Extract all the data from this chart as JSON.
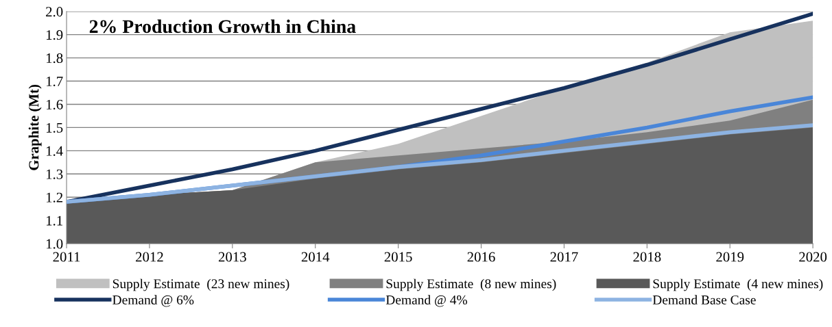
{
  "chart_data": {
    "type": "area",
    "title": "2% Production Growth in China",
    "ylabel": "Graphite (Mt)",
    "x": [
      2011,
      2012,
      2013,
      2014,
      2015,
      2016,
      2017,
      2018,
      2019,
      2020
    ],
    "xlim": [
      2011,
      2020
    ],
    "xticks": [
      2011,
      2012,
      2013,
      2014,
      2015,
      2016,
      2017,
      2018,
      2019,
      2020
    ],
    "ylim": [
      1.0,
      2.0
    ],
    "yticks": [
      {
        "value": 1.0,
        "label": "1.0"
      },
      1.1,
      1.2,
      1.3,
      1.4,
      1.5,
      1.6,
      1.7,
      1.8,
      1.9,
      {
        "value": 2.0,
        "label": "2.0"
      }
    ],
    "grid": "y",
    "legend": "bottom",
    "series": [
      {
        "name": "Supply Estimate  (23 new mines)",
        "color": "#c0c0c0",
        "values": [
          1.18,
          1.21,
          1.23,
          1.35,
          1.43,
          1.55,
          1.67,
          1.78,
          1.91,
          1.96
        ]
      },
      {
        "name": "Supply Estimate  (8 new mines)",
        "color": "#808080",
        "values": [
          1.18,
          1.21,
          1.23,
          1.35,
          1.38,
          1.41,
          1.44,
          1.48,
          1.53,
          1.62
        ]
      },
      {
        "name": "Supply Estimate  (4 new mines)",
        "color": "#595959",
        "values": [
          1.18,
          1.21,
          1.23,
          1.28,
          1.32,
          1.35,
          1.39,
          1.43,
          1.47,
          1.5
        ]
      },
      {
        "name": "Demand @ 6%",
        "type": "line",
        "color": "#17325e",
        "values": [
          1.18,
          1.25,
          1.32,
          1.4,
          1.49,
          1.58,
          1.67,
          1.77,
          1.88,
          1.99
        ]
      },
      {
        "name": "Demand @ 4%",
        "type": "line",
        "color": "#4a86d8",
        "values": [
          1.18,
          1.21,
          1.25,
          1.29,
          1.33,
          1.38,
          1.44,
          1.5,
          1.57,
          1.63
        ]
      },
      {
        "name": "Demand Base Case",
        "type": "line",
        "color": "#8db3e2",
        "values": [
          1.18,
          1.21,
          1.25,
          1.29,
          1.33,
          1.36,
          1.4,
          1.44,
          1.48,
          1.51
        ]
      }
    ]
  }
}
